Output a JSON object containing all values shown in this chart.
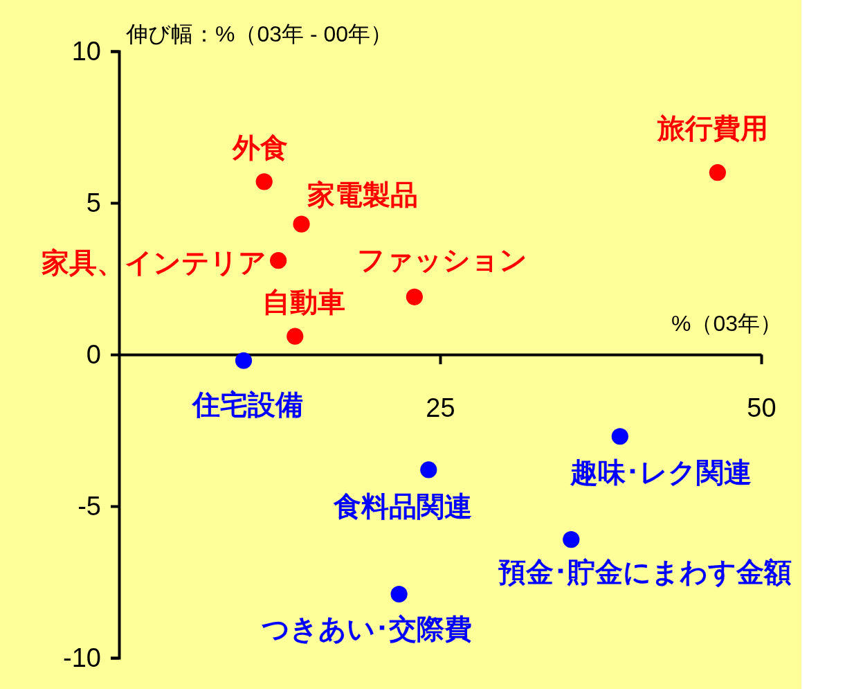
{
  "chart_data": {
    "type": "scatter",
    "xlabel": "%（03年）",
    "ylabel": "伸び幅：%（03年 - 00年）",
    "xlim": [
      0,
      50
    ],
    "ylim": [
      -10,
      10
    ],
    "xticks": [
      25,
      50
    ],
    "yticks": [
      -10,
      -5,
      0,
      5,
      10
    ],
    "marker": "circle",
    "grid": false,
    "series": [
      {
        "color": "#ff0000",
        "x": [
          11.3,
          14.2,
          12.4,
          13.7,
          23.0,
          46.6
        ],
        "values": [
          5.7,
          4.3,
          3.1,
          0.6,
          1.9,
          6.0
        ]
      },
      {
        "color": "#0000ff",
        "x": [
          9.7,
          24.1,
          39.0,
          35.2,
          21.8
        ],
        "values": [
          -0.2,
          -3.8,
          -2.7,
          -6.1,
          -7.9
        ]
      }
    ],
    "annotations": [
      {
        "text": "外食",
        "x": 11.3,
        "y": 5.7
      },
      {
        "text": "家電製品",
        "x": 14.2,
        "y": 4.3
      },
      {
        "text": "家具、インテリア",
        "x": 12.4,
        "y": 3.1
      },
      {
        "text": "自動車",
        "x": 13.7,
        "y": 0.6
      },
      {
        "text": "ファッション",
        "x": 23.0,
        "y": 1.9
      },
      {
        "text": "旅行費用",
        "x": 46.6,
        "y": 6.0
      },
      {
        "text": "住宅設備",
        "x": 9.7,
        "y": -0.2
      },
      {
        "text": "食料品関連",
        "x": 24.1,
        "y": -3.8
      },
      {
        "text": "趣味･レク関連",
        "x": 39.0,
        "y": -2.7
      },
      {
        "text": "預金･貯金にまわす金額",
        "x": 35.2,
        "y": -6.1
      },
      {
        "text": "つきあい･交際費",
        "x": 21.8,
        "y": -7.9
      }
    ]
  }
}
